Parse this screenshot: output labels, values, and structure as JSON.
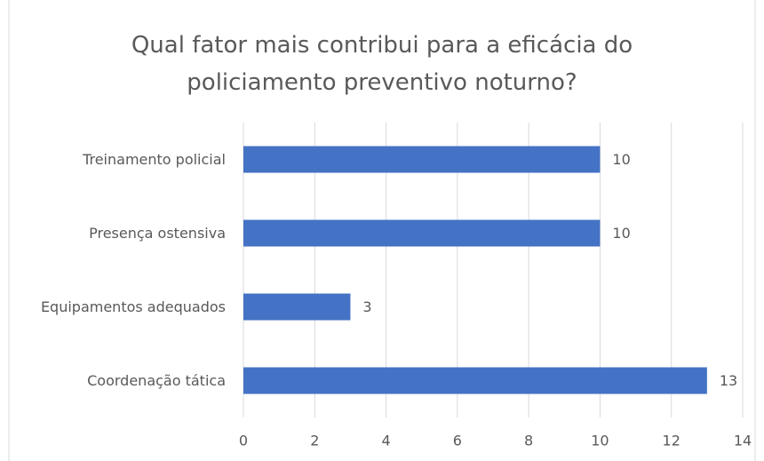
{
  "chart_data": {
    "type": "hbar",
    "title": "Qual fator mais contribui para a eficácia do policiamento preventivo noturno?",
    "categories": [
      "Treinamento policial",
      "Presença ostensiva",
      "Equipamentos adequados",
      "Coordenação tática"
    ],
    "values": [
      10,
      10,
      3,
      13
    ],
    "color": "#4472c4",
    "xlim": [
      0,
      14
    ],
    "xticks": [
      0,
      2,
      4,
      6,
      8,
      10,
      12,
      14
    ],
    "grid": true
  }
}
